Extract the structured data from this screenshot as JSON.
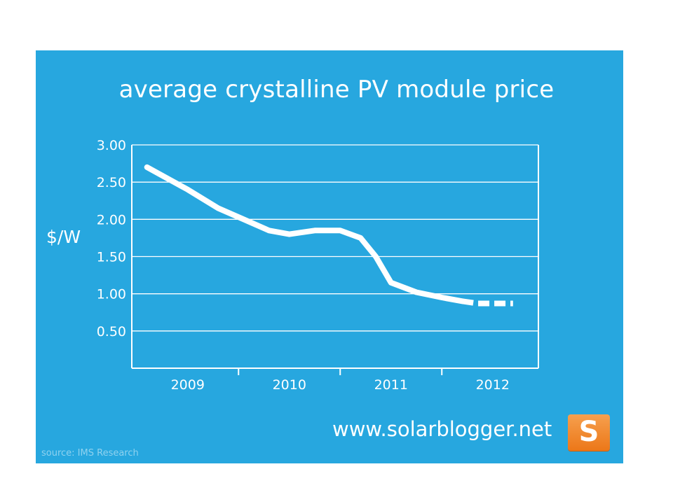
{
  "chart_data": {
    "type": "line",
    "title": "average crystalline PV module price",
    "ylabel": "$/W",
    "xlabel": "",
    "ylim": [
      0,
      3.0
    ],
    "yticks": [
      3.0,
      2.5,
      2.0,
      1.5,
      1.0,
      0.5
    ],
    "ytick_labels": [
      "3.00",
      "2.50",
      "2.00",
      "1.50",
      "1.00",
      "0.50"
    ],
    "categories": [
      "2009",
      "2010",
      "2011",
      "2012"
    ],
    "series": [
      {
        "x": [
          2008.6,
          2009.0,
          2009.3,
          2009.55,
          2009.8,
          2010.0,
          2010.25,
          2010.5,
          2010.7,
          2010.85,
          2011.0,
          2011.25,
          2011.5,
          2011.7
        ],
        "values": [
          2.7,
          2.4,
          2.15,
          2.0,
          1.85,
          1.8,
          1.85,
          1.85,
          1.75,
          1.5,
          1.15,
          1.02,
          0.95,
          0.9
        ],
        "style": "solid"
      },
      {
        "x": [
          2011.7,
          2011.85,
          2012.0,
          2012.2
        ],
        "values": [
          0.9,
          0.87,
          0.87,
          0.87
        ],
        "style": "dashed"
      }
    ],
    "grid": true,
    "colors": {
      "background": "#27a7df",
      "line": "#ffffff",
      "grid": "#ffffff"
    }
  },
  "footer": {
    "website": "www.solarblogger.net",
    "source": "source: IMS Research",
    "logo_letter": "S"
  }
}
